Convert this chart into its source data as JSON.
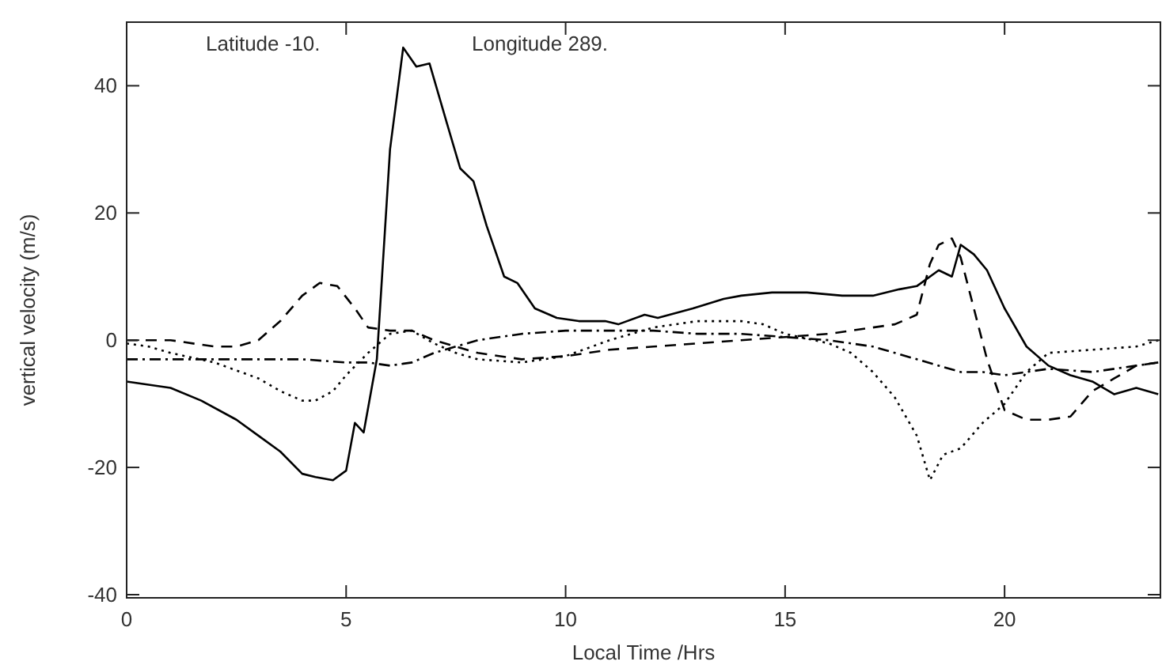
{
  "chart_data": {
    "type": "line",
    "xlabel": "Local Time /Hrs",
    "ylabel": "vertical velocity (m/s)",
    "annotations": [
      "Latitude -10.",
      "Longitude 289."
    ],
    "xlim": [
      0,
      23.55
    ],
    "ylim": [
      -40.5,
      50
    ],
    "xticks": [
      0,
      5,
      10,
      15,
      20
    ],
    "yticks": [
      -40,
      -20,
      0,
      20,
      40
    ],
    "grid": false,
    "marker": "none",
    "series": [
      {
        "color": "#000000",
        "line_style": "solid",
        "x": [
          0,
          1,
          1.7,
          2.5,
          3,
          3.5,
          4,
          4.3,
          4.7,
          5,
          5.2,
          5.4,
          5.7,
          6,
          6.3,
          6.6,
          6.9,
          7.3,
          7.6,
          7.9,
          8.2,
          8.6,
          8.9,
          9.3,
          9.8,
          10.3,
          10.9,
          11.2,
          11.8,
          12.1,
          12.9,
          13.6,
          14,
          14.7,
          15.5,
          16.3,
          17,
          17.6,
          18,
          18.5,
          18.8,
          19,
          19.3,
          19.6,
          20,
          20.5,
          21,
          21.5,
          22,
          22.5,
          23,
          23.5
        ],
        "values": [
          -6.5,
          -7.5,
          -9.5,
          -12.5,
          -15,
          -17.5,
          -21,
          -21.5,
          -22,
          -20.5,
          -13,
          -14.5,
          -3,
          30,
          46,
          43,
          43.5,
          34,
          27,
          25,
          18,
          10,
          9,
          5,
          3.5,
          3,
          3,
          2.5,
          4,
          3.5,
          5,
          6.5,
          7,
          7.5,
          7.5,
          7,
          7,
          8,
          8.5,
          11,
          10,
          15,
          13.5,
          11,
          5,
          -1,
          -4,
          -5.5,
          -6.5,
          -8.5,
          -7.5,
          -8.5
        ]
      },
      {
        "color": "#000000",
        "line_style": "dashed",
        "x": [
          0,
          1,
          2,
          2.5,
          3,
          3.5,
          4,
          4.4,
          4.8,
          5.2,
          5.5,
          6,
          6.5,
          7,
          7.5,
          8,
          9,
          10,
          11,
          12,
          13,
          14,
          15,
          16,
          17,
          17.5,
          18,
          18.3,
          18.5,
          18.8,
          19,
          19.3,
          19.6,
          20,
          20.5,
          21,
          21.5,
          22,
          22.5,
          23,
          23.5
        ],
        "values": [
          0,
          0,
          -1,
          -1,
          0,
          3,
          7,
          9,
          8.5,
          5,
          2,
          1.5,
          1.5,
          0,
          -1,
          -2,
          -3,
          -2.5,
          -1.5,
          -1,
          -0.5,
          0,
          0.5,
          1,
          2,
          2.5,
          4,
          12,
          15,
          16,
          13,
          5,
          -3,
          -11,
          -12.5,
          -12.5,
          -12,
          -8,
          -6,
          -4,
          -3.5
        ]
      },
      {
        "color": "#000000",
        "line_style": "dotted",
        "x": [
          0,
          0.5,
          1,
          2,
          3,
          3.5,
          4,
          4.3,
          4.7,
          5,
          5.5,
          6,
          6.5,
          7,
          7.5,
          8,
          9,
          10,
          11,
          12,
          12.5,
          13,
          14,
          14.5,
          15,
          16,
          16.5,
          17,
          17.5,
          18,
          18.3,
          18.6,
          19,
          19.5,
          20,
          20.5,
          21,
          22,
          23,
          23.5
        ],
        "values": [
          -0.5,
          -1,
          -2,
          -3.5,
          -6,
          -8,
          -9.5,
          -9.5,
          -8,
          -5.5,
          -2,
          1,
          1.5,
          -0.5,
          -2,
          -3,
          -3.5,
          -2.5,
          0,
          2,
          2.5,
          3,
          3,
          2.5,
          1,
          -0.5,
          -2,
          -5,
          -9,
          -15,
          -22,
          -18,
          -17,
          -13,
          -10,
          -5,
          -2,
          -1.5,
          -1,
          0
        ]
      },
      {
        "color": "#000000",
        "line_style": "dashdot",
        "x": [
          0,
          1,
          2,
          3,
          4,
          5,
          5.5,
          6,
          6.5,
          7,
          7.5,
          8,
          9,
          10,
          11,
          12,
          13,
          14,
          15,
          16,
          17,
          17.5,
          18,
          18.5,
          19,
          19.5,
          20,
          21,
          22,
          23,
          23.5
        ],
        "values": [
          -3,
          -3,
          -3,
          -3,
          -3,
          -3.5,
          -3.5,
          -4,
          -3.5,
          -2,
          -1,
          0,
          1,
          1.5,
          1.5,
          1.5,
          1,
          1,
          0.5,
          0,
          -1,
          -2,
          -3,
          -4,
          -5,
          -5,
          -5.5,
          -4.5,
          -5,
          -4,
          -3.5
        ]
      }
    ]
  }
}
